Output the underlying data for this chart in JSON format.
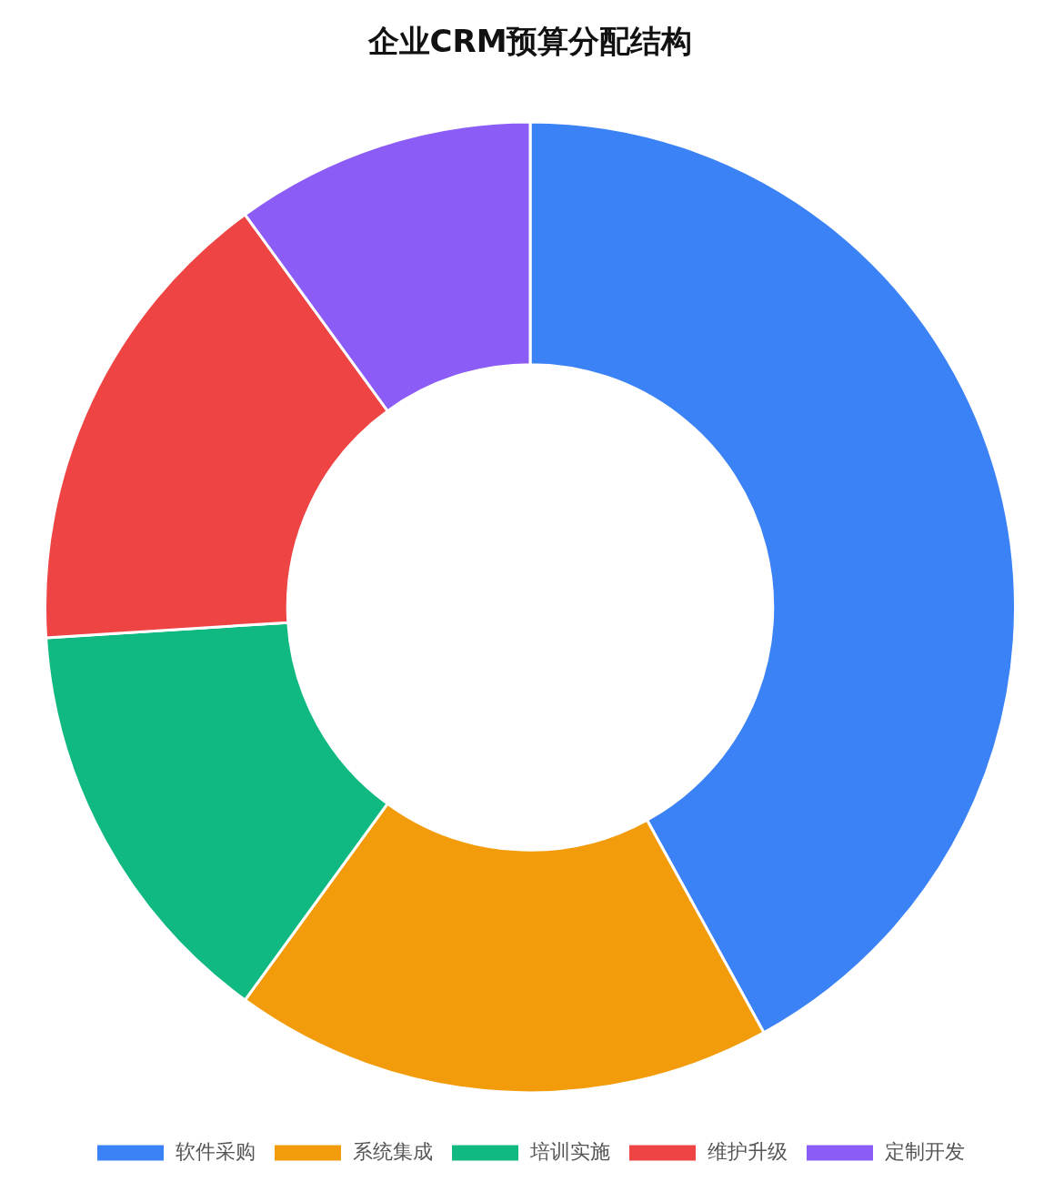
{
  "chart_data": {
    "type": "donut",
    "title": "企业CRM预算分配结构",
    "categories": [
      "软件采购",
      "系统集成",
      "培训实施",
      "维护升级",
      "定制开发"
    ],
    "values": [
      42,
      18,
      14,
      16,
      10
    ],
    "colors": [
      "#3b82f6",
      "#f39c0b",
      "#10b981",
      "#ef4444",
      "#8b5cf6"
    ],
    "legend": "bottom"
  }
}
